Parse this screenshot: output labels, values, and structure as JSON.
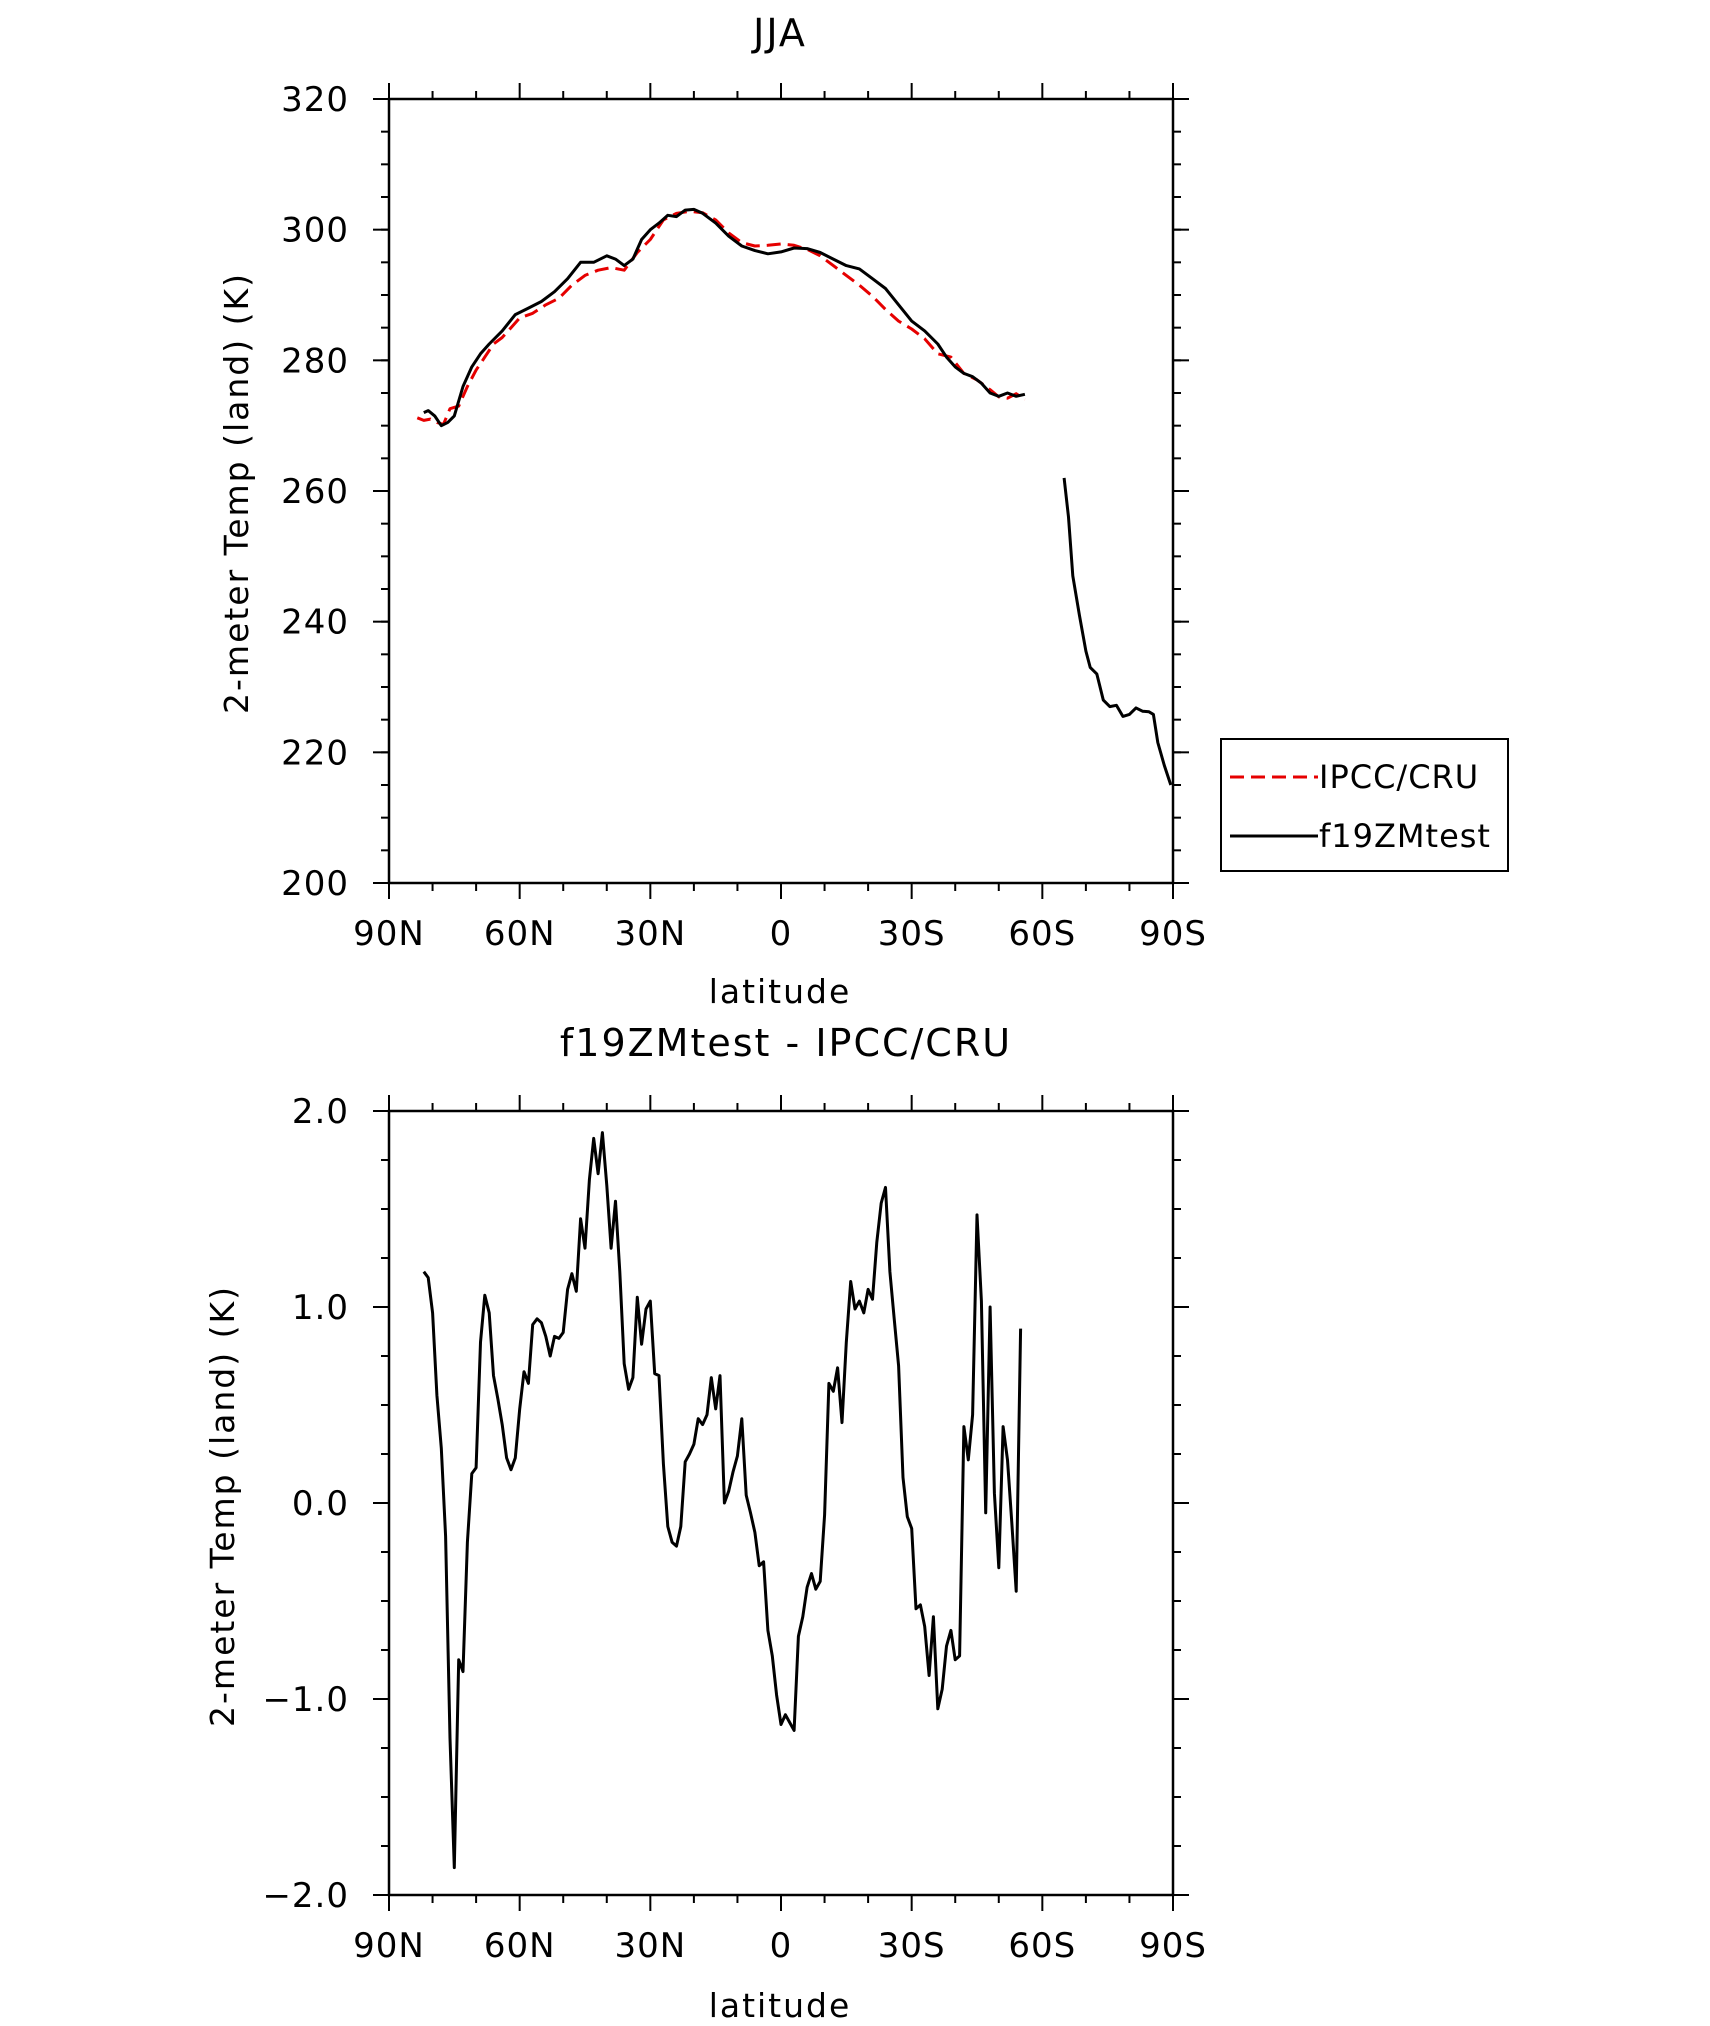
{
  "chart_data": [
    {
      "type": "line",
      "title": "JJA",
      "xlabel": "latitude",
      "ylabel": "2-meter Temp (land) (K)",
      "xlim": [
        90,
        -90
      ],
      "ylim": [
        200,
        320
      ],
      "x_ticks": [
        90,
        60,
        30,
        0,
        -30,
        -60,
        -90
      ],
      "x_tick_labels": [
        "90N",
        "60N",
        "30N",
        "0",
        "30S",
        "60S",
        "90S"
      ],
      "y_ticks": [
        200,
        220,
        240,
        260,
        280,
        300,
        320
      ],
      "y_tick_labels": [
        "200",
        "220",
        "240",
        "260",
        "280",
        "300",
        "320"
      ],
      "legend": {
        "position": "right",
        "entries": [
          "IPCC/CRU",
          "f19ZMtest"
        ]
      },
      "grid": false,
      "series": [
        {
          "name": "IPCC/CRU",
          "color": "#e60000",
          "dash": "dashed",
          "x": [
            83.5,
            82,
            80.5,
            79,
            77.5,
            76,
            74,
            72,
            70,
            68,
            66,
            64,
            62,
            60,
            57,
            54,
            51,
            48,
            45,
            42,
            39,
            36,
            33,
            30,
            27,
            24,
            21,
            18,
            15,
            12,
            9,
            6,
            3,
            0,
            -3,
            -6,
            -9,
            -12,
            -15,
            -18,
            -21,
            -24,
            -27,
            -30,
            -33,
            -36,
            -39,
            -42,
            -45,
            -48,
            -50,
            -52,
            -54,
            -56
          ],
          "y": [
            271.2,
            270.8,
            271.0,
            270.5,
            270.2,
            272.6,
            273.0,
            276.0,
            278.5,
            280.5,
            282.5,
            283.5,
            285.0,
            286.5,
            287.2,
            288.5,
            289.5,
            291.5,
            293.0,
            293.8,
            294.2,
            293.8,
            296.5,
            298.5,
            301.5,
            302.5,
            302.8,
            302.6,
            301.5,
            299.5,
            298.0,
            297.5,
            297.6,
            297.8,
            297.6,
            297.0,
            296.0,
            294.5,
            293.0,
            291.5,
            289.8,
            287.8,
            286.0,
            284.8,
            283.3,
            281.0,
            280.5,
            278.0,
            277.0,
            275.5,
            274.4,
            274.2,
            274.9,
            274.0
          ]
        },
        {
          "name": "f19ZMtest",
          "color": "#000000",
          "dash": "solid",
          "x": [
            82,
            81,
            79.5,
            78,
            76.5,
            75,
            73,
            71,
            69,
            67,
            64,
            61,
            58,
            55,
            52,
            49,
            46,
            43,
            40,
            38,
            36,
            34,
            32,
            30,
            28,
            26,
            24,
            22,
            20,
            18,
            15,
            12,
            9,
            6,
            3,
            0,
            -3,
            -6,
            -9,
            -12,
            -15,
            -18,
            -21,
            -24,
            -27,
            -30,
            -33,
            -36,
            -38,
            -40,
            -42,
            -44,
            -46,
            -48,
            -50,
            -52,
            -54,
            -56
          ],
          "y": [
            272.0,
            272.3,
            271.5,
            270.0,
            270.5,
            271.5,
            276.0,
            279.0,
            281.0,
            282.5,
            284.5,
            287.0,
            288.0,
            289.0,
            290.5,
            292.5,
            295.0,
            295.0,
            296.0,
            295.5,
            294.5,
            295.5,
            298.5,
            300.0,
            301.0,
            302.2,
            302.0,
            303.0,
            303.1,
            302.5,
            301.0,
            299.0,
            297.5,
            296.8,
            296.3,
            296.6,
            297.2,
            297.1,
            296.5,
            295.5,
            294.5,
            294.0,
            292.5,
            291.0,
            288.5,
            286.0,
            284.5,
            282.5,
            280.5,
            279.0,
            278.0,
            277.5,
            276.5,
            275.0,
            274.5,
            275.0,
            274.5,
            274.8
          ]
        },
        {
          "name": "f19ZMtest",
          "color": "#000000",
          "dash": "solid",
          "x": [
            -65,
            -66,
            -67,
            -68.5,
            -70,
            -71,
            -72.5,
            -74,
            -75.5,
            -77,
            -78.5,
            -80,
            -81.5,
            -83,
            -84.5,
            -85.5,
            -86.5,
            -88,
            -89.5
          ],
          "y": [
            262.0,
            256.0,
            247.0,
            241.0,
            235.5,
            233.0,
            232.0,
            228.0,
            227.0,
            227.2,
            225.5,
            225.8,
            226.8,
            226.3,
            226.2,
            225.8,
            221.5,
            218.0,
            215.0
          ]
        }
      ]
    },
    {
      "type": "line",
      "title": "f19ZMtest - IPCC/CRU",
      "xlabel": "latitude",
      "ylabel": "2-meter Temp (land) (K)",
      "xlim": [
        90,
        -90
      ],
      "ylim": [
        -2.0,
        2.0
      ],
      "x_ticks": [
        90,
        60,
        30,
        0,
        -30,
        -60,
        -90
      ],
      "x_tick_labels": [
        "90N",
        "60N",
        "30N",
        "0",
        "30S",
        "60S",
        "90S"
      ],
      "y_ticks": [
        -2.0,
        -1.0,
        0.0,
        1.0,
        2.0
      ],
      "y_tick_labels": [
        "−2.0",
        "−1.0",
        "0.0",
        "1.0",
        "2.0"
      ],
      "grid": false,
      "series": [
        {
          "color": "#000000",
          "dash": "solid",
          "x": [
            82.0,
            81.0,
            80.0,
            79.0,
            78.0,
            77.0,
            76.0,
            75.0,
            74.0,
            73.0,
            72.0,
            71.0,
            70.0,
            69.0,
            68.0,
            67.0,
            66.0,
            65.0,
            64.0,
            63.0,
            62.0,
            61.0,
            60.0,
            59.0,
            58.0,
            57.0,
            56.0,
            55.0,
            54.0,
            53.0,
            52.0,
            51.0,
            50.0,
            49.0,
            48.0,
            47.0,
            46.0,
            45.0,
            44.0,
            43.0,
            42.0,
            41.0,
            40.0,
            39.0,
            38.0,
            37.0,
            36.0,
            35.0,
            34.0,
            33.0,
            32.0,
            31.0,
            30.0,
            29.0,
            28.0,
            27.0,
            26.0,
            25.0,
            24.0,
            23.0,
            22.0,
            21.0,
            20.0,
            19.0,
            18.0,
            17.0,
            16.0,
            15.0,
            14.0,
            13.0,
            12.0,
            11.0,
            10.0,
            9.0,
            8.0,
            7.0,
            6.0,
            5.0,
            4.0,
            3.0,
            2.0,
            1.0,
            0.0,
            -1.0,
            -2.0,
            -3.0,
            -4.0,
            -5.0,
            -6.0,
            -7.0,
            -8.0,
            -9.0,
            -10.0,
            -11.0,
            -12.0,
            -13.0,
            -14.0,
            -15.0,
            -16.0,
            -17.0,
            -18.0,
            -19.0,
            -20.0,
            -21.0,
            -22.0,
            -23.0,
            -24.0,
            -25.0,
            -26.0,
            -27.0,
            -28.0,
            -29.0,
            -30.0,
            -31.0,
            -32.0,
            -33.0,
            -34.0,
            -35.0,
            -36.0,
            -37.0,
            -38.0,
            -39.0,
            -40.0,
            -41.0,
            -42.0,
            -43.0,
            -44.0,
            -45.0,
            -46.0,
            -47.0,
            -48.0,
            -49.0,
            -50.0,
            -51.0,
            -52.0,
            -53.0,
            -54.0,
            -55.0
          ],
          "y": [
            1.18,
            1.15,
            0.97,
            0.55,
            0.28,
            -0.17,
            -1.2,
            -1.86,
            -0.8,
            -0.86,
            -0.2,
            0.15,
            0.18,
            0.82,
            1.06,
            0.97,
            0.65,
            0.53,
            0.4,
            0.23,
            0.17,
            0.23,
            0.48,
            0.67,
            0.61,
            0.91,
            0.94,
            0.92,
            0.85,
            0.75,
            0.85,
            0.84,
            0.87,
            1.09,
            1.17,
            1.08,
            1.45,
            1.3,
            1.65,
            1.86,
            1.68,
            1.89,
            1.62,
            1.3,
            1.54,
            1.18,
            0.71,
            0.58,
            0.64,
            1.05,
            0.81,
            0.99,
            1.03,
            0.66,
            0.65,
            0.2,
            -0.12,
            -0.2,
            -0.22,
            -0.12,
            0.21,
            0.25,
            0.3,
            0.43,
            0.4,
            0.45,
            0.64,
            0.48,
            0.65,
            0.0,
            0.06,
            0.16,
            0.24,
            0.43,
            0.04,
            -0.05,
            -0.15,
            -0.32,
            -0.3,
            -0.65,
            -0.78,
            -0.98,
            -1.13,
            -1.08,
            -1.12,
            -1.16,
            -0.68,
            -0.58,
            -0.43,
            -0.36,
            -0.44,
            -0.4,
            -0.06,
            0.61,
            0.57,
            0.69,
            0.41,
            0.82,
            1.13,
            0.99,
            1.03,
            0.97,
            1.09,
            1.04,
            1.33,
            1.53,
            1.61,
            1.18,
            0.94,
            0.7,
            0.13,
            -0.07,
            -0.13,
            -0.54,
            -0.52,
            -0.63,
            -0.88,
            -0.58,
            -1.05,
            -0.95,
            -0.73,
            -0.65,
            -0.8,
            -0.78,
            0.39,
            0.22,
            0.45,
            1.47,
            1.03,
            -0.05,
            1.0,
            0.05,
            -0.33,
            0.39,
            0.22,
            -0.1,
            -0.45,
            0.89
          ]
        }
      ]
    }
  ]
}
